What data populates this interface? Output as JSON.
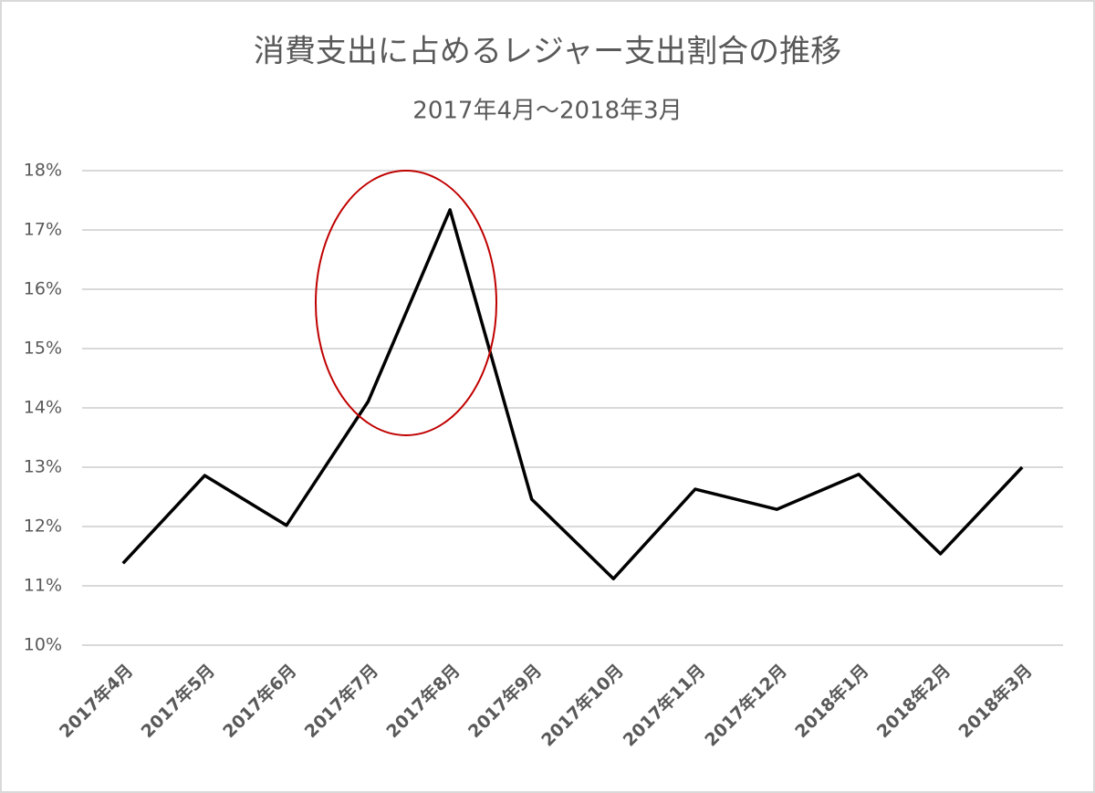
{
  "chart_data": {
    "type": "line",
    "title": "消費支出に占めるレジャー支出割合の推移",
    "subtitle": "2017年4月～2018年3月",
    "categories": [
      "2017年4月",
      "2017年5月",
      "2017年6月",
      "2017年7月",
      "2017年8月",
      "2017年9月",
      "2017年10月",
      "2017年11月",
      "2017年12月",
      "2018年1月",
      "2018年2月",
      "2018年3月"
    ],
    "series": [
      {
        "name": "レジャー支出割合",
        "color": "#000000",
        "values": [
          11.38,
          12.86,
          12.02,
          14.11,
          17.34,
          12.46,
          11.12,
          12.63,
          12.29,
          12.88,
          11.54,
          13.0
        ]
      }
    ],
    "ylim": [
      10,
      18
    ],
    "yticks": [
      {
        "value": 10,
        "label": "10%"
      },
      {
        "value": 11,
        "label": "11%"
      },
      {
        "value": 12,
        "label": "12%"
      },
      {
        "value": 13,
        "label": "13%"
      },
      {
        "value": 14,
        "label": "14%"
      },
      {
        "value": 15,
        "label": "15%"
      },
      {
        "value": 16,
        "label": "16%"
      },
      {
        "value": 17,
        "label": "17%"
      },
      {
        "value": 18,
        "label": "18%"
      }
    ],
    "grid": true
  }
}
